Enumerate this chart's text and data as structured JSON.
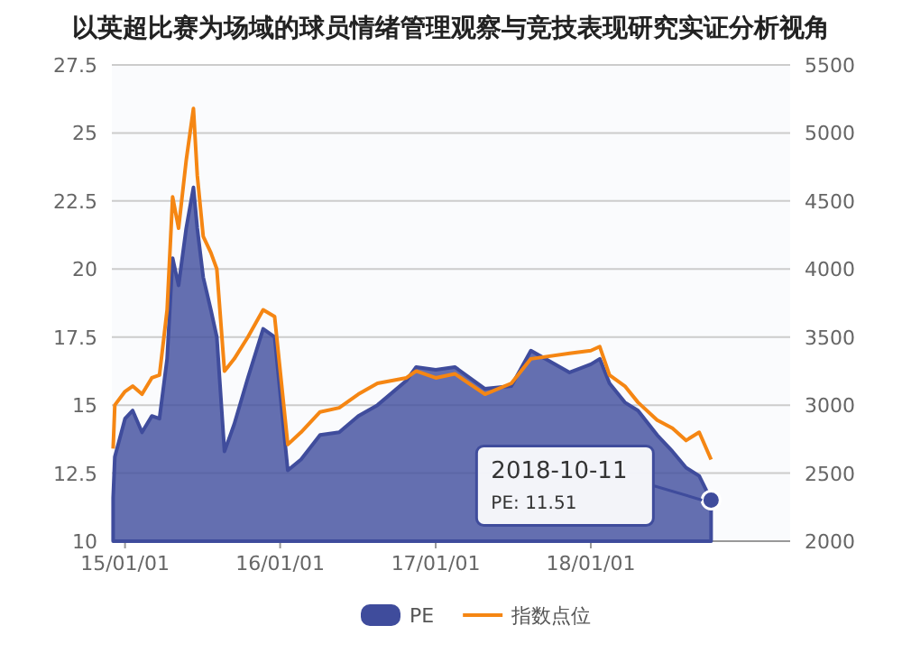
{
  "chart_data": {
    "type": "area",
    "title": "以英超比赛为场域的球员情绪管理观察与竞技表现研究实证分析视角",
    "x": [
      "2014-12-04",
      "2014-12-08",
      "2015-01-01",
      "2015-01-19",
      "2015-02-10",
      "2015-03-05",
      "2015-03-23",
      "2015-04-10",
      "2015-04-23",
      "2015-05-07",
      "2015-05-25",
      "2015-06-11",
      "2015-06-20",
      "2015-07-04",
      "2015-07-22",
      "2015-08-05",
      "2015-08-23",
      "2015-09-15",
      "2015-10-17",
      "2015-11-22",
      "2015-12-19",
      "2016-01-19",
      "2016-02-19",
      "2016-04-04",
      "2016-05-19",
      "2016-07-03",
      "2016-08-17",
      "2016-10-24",
      "2016-11-16",
      "2017-01-01",
      "2017-02-15",
      "2017-04-27",
      "2017-06-28",
      "2017-08-13",
      "2017-11-12",
      "2018-01-01",
      "2018-01-22",
      "2018-02-14",
      "2018-03-22",
      "2018-04-22",
      "2018-06-06",
      "2018-07-12",
      "2018-08-13",
      "2018-09-13",
      "2018-10-11"
    ],
    "series": [
      {
        "name": "PE",
        "color": "#3f4c9c",
        "values": [
          11.6,
          13.1,
          14.5,
          14.8,
          14.0,
          14.6,
          14.5,
          16.7,
          20.4,
          19.4,
          21.5,
          23.0,
          21.5,
          19.7,
          18.5,
          17.5,
          13.3,
          14.3,
          16.0,
          17.8,
          17.5,
          12.6,
          13.0,
          13.9,
          14.0,
          14.6,
          15.0,
          15.9,
          16.4,
          16.3,
          16.4,
          15.6,
          15.7,
          17.0,
          16.2,
          16.5,
          16.7,
          15.8,
          15.1,
          14.8,
          13.9,
          13.3,
          12.7,
          12.4,
          11.51
        ]
      },
      {
        "name": "指数点位",
        "type": "line",
        "axis": "y2",
        "color": "#f58613",
        "values": [
          2680,
          3000,
          3100,
          3140,
          3080,
          3200,
          3220,
          3700,
          4530,
          4300,
          4800,
          5180,
          4690,
          4240,
          4120,
          4000,
          3250,
          3340,
          3500,
          3700,
          3650,
          2710,
          2800,
          2950,
          2980,
          3080,
          3160,
          3200,
          3250,
          3200,
          3230,
          3080,
          3160,
          3340,
          3380,
          3400,
          3430,
          3220,
          3140,
          3020,
          2890,
          2830,
          2740,
          2800,
          2600
        ]
      }
    ],
    "xlim": [
      "2014-12-01",
      "2019-04-15"
    ],
    "xticks": [
      {
        "value": "2015-01-01",
        "label": "15/01/01"
      },
      {
        "value": "2016-01-01",
        "label": "16/01/01"
      },
      {
        "value": "2017-01-01",
        "label": "17/01/01"
      },
      {
        "value": "2018-01-01",
        "label": "18/01/01"
      }
    ],
    "ylim": [
      10,
      27.5
    ],
    "yticks": [
      10,
      12.5,
      15,
      17.5,
      20,
      22.5,
      25,
      27.5
    ],
    "y2lim": [
      2000,
      5500
    ],
    "y2ticks": [
      2000,
      2500,
      3000,
      3500,
      4000,
      4500,
      5000,
      5500
    ],
    "grid": "y",
    "legend": "bottom",
    "annotations": [
      {
        "text": "2018-10-11\nPE: 11.51",
        "x": "2018-10-11",
        "y": 11.51
      }
    ]
  }
}
